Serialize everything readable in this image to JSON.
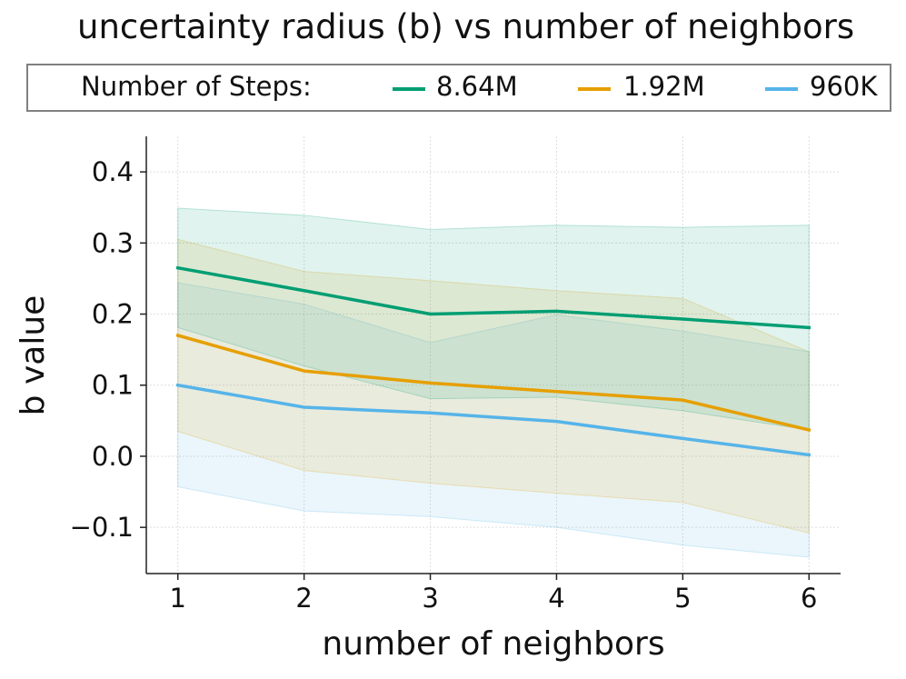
{
  "chart_data": {
    "type": "line",
    "title": "uncertainty radius (b) vs number of neighbors",
    "xlabel": "number of neighbors",
    "ylabel": "b value",
    "x": [
      1,
      2,
      3,
      4,
      5,
      6
    ],
    "xlim": [
      0.75,
      6.25
    ],
    "ylim": [
      -0.165,
      0.45
    ],
    "xticks": [
      1,
      2,
      3,
      4,
      5,
      6
    ],
    "xtick_labels": [
      "1",
      "2",
      "3",
      "4",
      "5",
      "6"
    ],
    "yticks": [
      -0.1,
      0.0,
      0.1,
      0.2,
      0.3,
      0.4
    ],
    "ytick_labels": [
      "−0.1",
      "0.0",
      "0.1",
      "0.2",
      "0.3",
      "0.4"
    ],
    "grid": true,
    "legend_title": "Number of Steps:",
    "legend_position": "top",
    "series": [
      {
        "name": "8.64M",
        "color": "#009E73",
        "values": [
          0.265,
          0.233,
          0.2,
          0.204,
          0.193,
          0.181
        ],
        "upper": [
          0.349,
          0.339,
          0.319,
          0.325,
          0.322,
          0.325
        ],
        "lower": [
          0.181,
          0.127,
          0.081,
          0.083,
          0.064,
          0.037
        ]
      },
      {
        "name": "1.92M",
        "color": "#E69F00",
        "values": [
          0.17,
          0.12,
          0.103,
          0.091,
          0.079,
          0.037
        ],
        "upper": [
          0.305,
          0.26,
          0.247,
          0.233,
          0.222,
          0.147
        ],
        "lower": [
          0.035,
          -0.02,
          -0.038,
          -0.052,
          -0.065,
          -0.108
        ]
      },
      {
        "name": "960K",
        "color": "#56B4E9",
        "values": [
          0.1,
          0.069,
          0.061,
          0.049,
          0.025,
          0.002
        ],
        "upper": [
          0.244,
          0.214,
          0.16,
          0.199,
          0.176,
          0.147
        ],
        "lower": [
          -0.043,
          -0.077,
          -0.085,
          -0.1,
          -0.125,
          -0.142
        ]
      }
    ]
  }
}
